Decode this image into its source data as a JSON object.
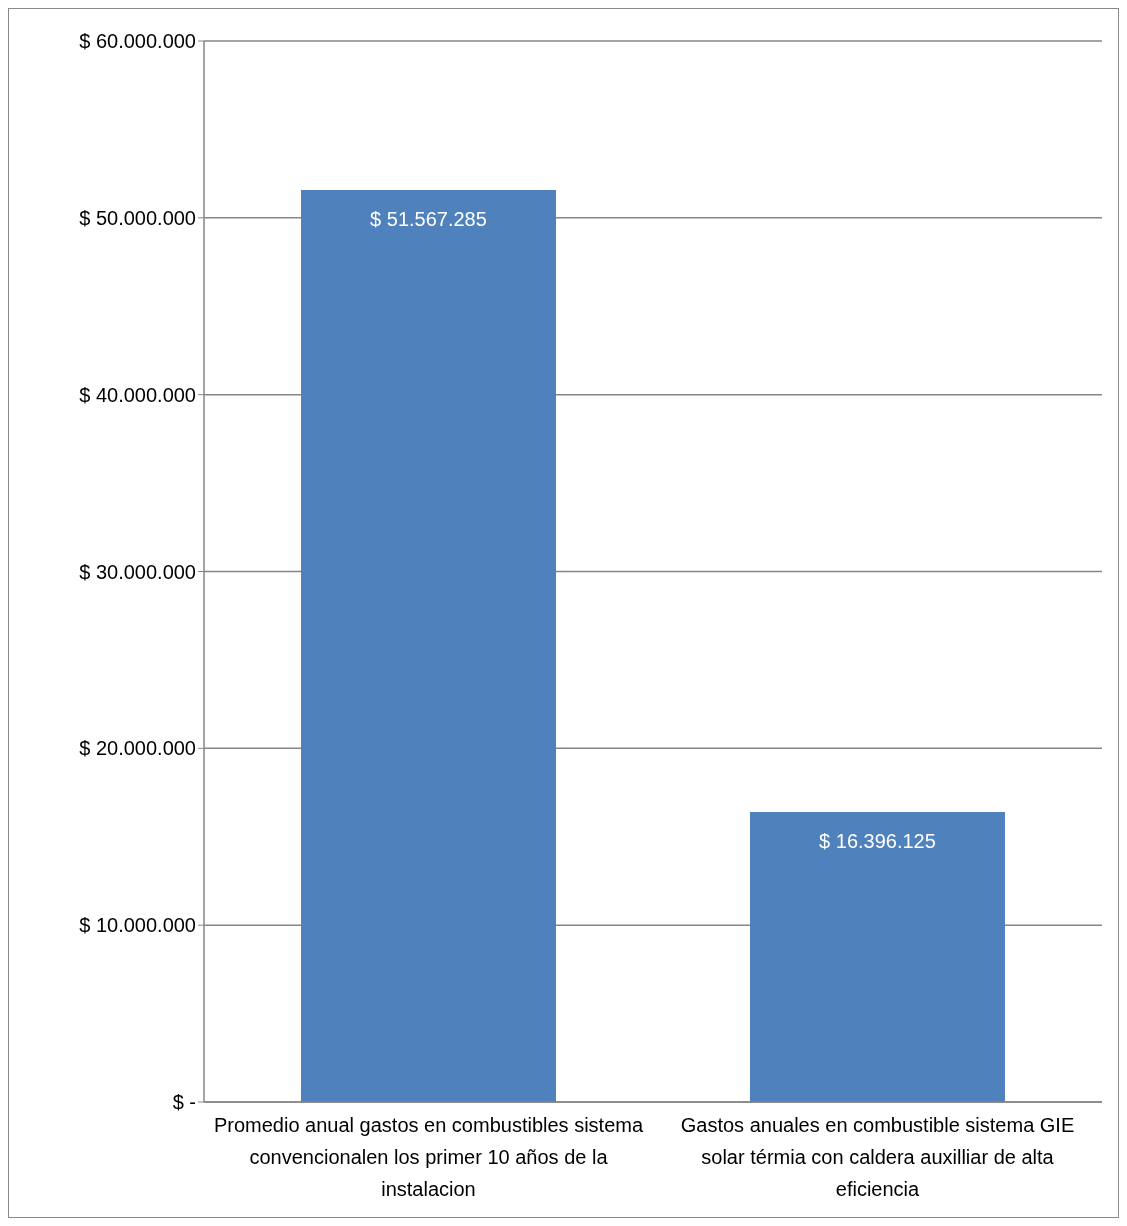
{
  "chart_data": {
    "type": "bar",
    "categories": [
      "Promedio anual gastos en combustibles sistema convencionalen los primer 10 años de la instalacion",
      "Gastos anuales en combustible sistema GIE solar térmia con caldera auxilliar de alta eficiencia"
    ],
    "values": [
      51567285,
      16396125
    ],
    "value_labels": [
      "$ 51.567.285",
      "$ 16.396.125"
    ],
    "color": "#4f81bd",
    "ylim": [
      0,
      60000000
    ],
    "yticks": [
      {
        "value": 0,
        "label": "$ -"
      },
      {
        "value": 10000000,
        "label": "$ 10.000.000"
      },
      {
        "value": 20000000,
        "label": "$ 20.000.000"
      },
      {
        "value": 30000000,
        "label": "$ 30.000.000"
      },
      {
        "value": 40000000,
        "label": "$ 40.000.000"
      },
      {
        "value": 50000000,
        "label": "$ 50.000.000"
      },
      {
        "value": 60000000,
        "label": "$ 60.000.000"
      }
    ],
    "grid": "y",
    "legend": false
  }
}
